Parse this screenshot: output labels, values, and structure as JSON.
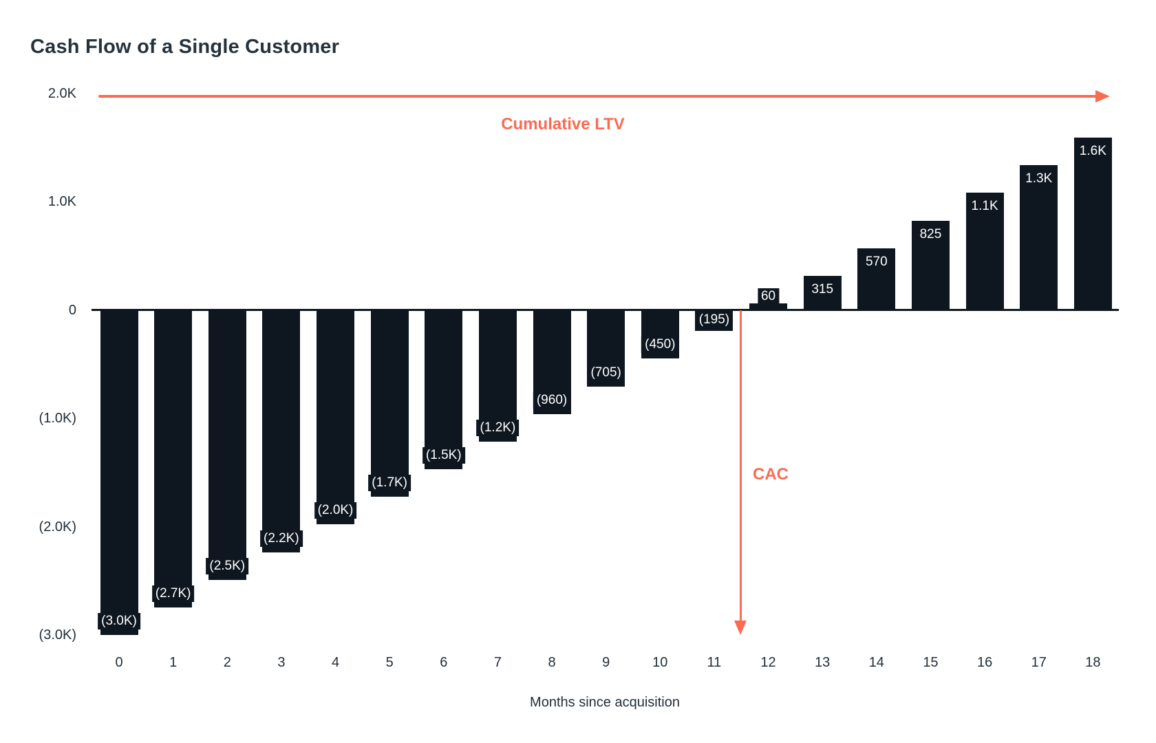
{
  "colors": {
    "bar": "#0e1720",
    "accent": "#f96b53",
    "text": "#222e38",
    "title_text": "#26323b",
    "axis_line": "#0e1720",
    "bar_label_text": "#ffffff",
    "background": "#ffffff"
  },
  "chart_data": {
    "type": "bar",
    "title": "Cash Flow of a Single Customer",
    "xlabel": "Months since acquisition",
    "ylabel": "",
    "categories": [
      "0",
      "1",
      "2",
      "3",
      "4",
      "5",
      "6",
      "7",
      "8",
      "9",
      "10",
      "11",
      "12",
      "13",
      "14",
      "15",
      "16",
      "17",
      "18"
    ],
    "values": [
      -3000,
      -2745,
      -2490,
      -2235,
      -1980,
      -1725,
      -1470,
      -1215,
      -960,
      -705,
      -450,
      -195,
      60,
      315,
      570,
      825,
      1080,
      1335,
      1590
    ],
    "bar_labels": [
      "(3.0K)",
      "(2.7K)",
      "(2.5K)",
      "(2.2K)",
      "(2.0K)",
      "(1.7K)",
      "(1.5K)",
      "(1.2K)",
      "(960)",
      "(705)",
      "(450)",
      "(195)",
      "60",
      "315",
      "570",
      "825",
      "1.1K",
      "1.3K",
      "1.6K"
    ],
    "y_ticks": [
      {
        "value": 2000,
        "label": "2.0K"
      },
      {
        "value": 1000,
        "label": "1.0K"
      },
      {
        "value": 0,
        "label": "0"
      },
      {
        "value": -1000,
        "label": "(1.0K)"
      },
      {
        "value": -2000,
        "label": "(2.0K)"
      },
      {
        "value": -3000,
        "label": "(3.0K)"
      }
    ],
    "ylim": [
      -3200,
      2100
    ],
    "grid": false,
    "legend": null,
    "annotations": [
      {
        "id": "cumulative-ltv",
        "shape": "arrow-right",
        "label": "Cumulative LTV",
        "y_value": 2000,
        "x_span": [
          -0.4,
          18.3
        ]
      },
      {
        "id": "cac",
        "shape": "arrow-down",
        "label": "CAC",
        "x_value": 11.5,
        "y_span": [
          0,
          -3000
        ]
      }
    ]
  }
}
